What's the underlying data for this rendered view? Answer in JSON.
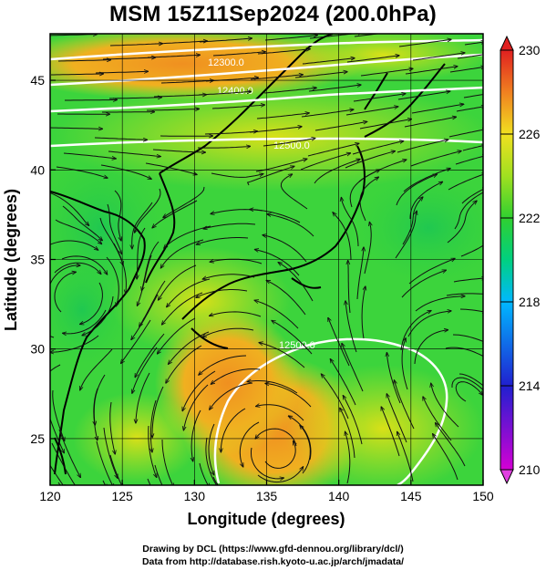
{
  "title": "MSM 15Z11Sep2024 (200.0hPa)",
  "axes": {
    "xlabel": "Longitude (degrees)",
    "ylabel": "Latitude  (degrees)",
    "xlim": [
      120,
      150
    ],
    "ylim": [
      22.4,
      47.6
    ],
    "xticks": [
      120,
      125,
      130,
      135,
      140,
      145,
      150
    ],
    "yticks": [
      25,
      30,
      35,
      40,
      45
    ]
  },
  "colorbar": {
    "min": 210,
    "max": 230,
    "tick_labels": [
      "230",
      "226",
      "222",
      "218",
      "214",
      "210"
    ],
    "tick_values": [
      230,
      226,
      222,
      218,
      214,
      210
    ]
  },
  "contour_labels": {
    "l12300": "12300.0",
    "l12400": "12400.0",
    "l12500": "12500.0",
    "l12500b": "12500.0"
  },
  "colors": {
    "field_green": "#3fd63a",
    "field_yellow": "#c7e41c",
    "field_orange": "#f0a020"
  },
  "footer": {
    "line1": "Drawing by DCL (https://www.gfd-dennou.org/library/dcl/)",
    "line2": "Data from http://database.rish.kyoto-u.ac.jp/arch/jmadata/"
  }
}
